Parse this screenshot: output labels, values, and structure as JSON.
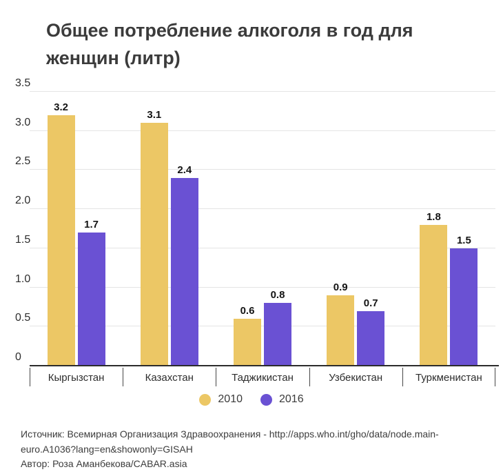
{
  "title": "Общее потребление алкоголя в год для женщин (литр)",
  "chart_data": {
    "type": "bar",
    "categories": [
      "Кыргызстан",
      "Казахстан",
      "Таджикистан",
      "Узбекистан",
      "Туркменистан"
    ],
    "series": [
      {
        "name": "2010",
        "color": "#ECC765",
        "values": [
          3.2,
          3.1,
          0.6,
          0.9,
          1.8
        ]
      },
      {
        "name": "2016",
        "color": "#6A51D3",
        "values": [
          1.7,
          2.4,
          0.8,
          0.7,
          1.5
        ]
      }
    ],
    "title": "Общее потребление алкоголя в год для женщин (литр)",
    "xlabel": "",
    "ylabel": "",
    "ylim": [
      0,
      3.5
    ],
    "yticks": [
      0,
      0.5,
      1.0,
      1.5,
      2.0,
      2.5,
      3.0,
      3.5
    ],
    "grid": true,
    "value_labels": true,
    "legend_position": "bottom"
  },
  "legend": [
    {
      "label": "2010",
      "color": "#ECC765"
    },
    {
      "label": "2016",
      "color": "#6A51D3"
    }
  ],
  "footer": {
    "source": "Источник: Всемирная Организация Здравоохранения - http://apps.who.int/gho/data/node.main-euro.A1036?lang=en&showonly=GISAH",
    "author": "Автор: Роза Аманбекова/CABAR.asia"
  },
  "colors": {
    "series_2010": "#ECC765",
    "series_2016": "#6A51D3",
    "gridline": "#e4e4e4",
    "axis_line": "#2b2b2b",
    "title_text": "#3b3b3b"
  }
}
